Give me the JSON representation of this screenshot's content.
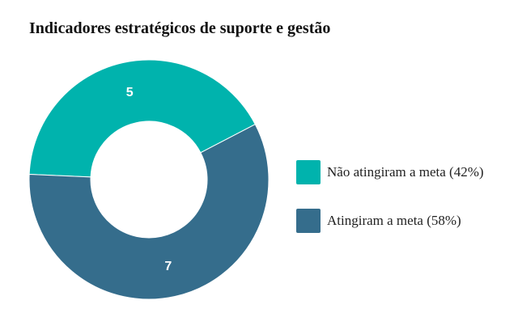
{
  "chart_data": {
    "type": "pie",
    "title": "Indicadores estratégicos de suporte e gestão",
    "donut": true,
    "legend_position": "right",
    "slices": [
      {
        "name": "Não atingiram a meta (42%)",
        "value": 5,
        "label": "5",
        "color": "#00b3ad"
      },
      {
        "name": "Atingiram a meta (58%)",
        "value": 7,
        "label": "7",
        "color": "#356d8c"
      }
    ]
  }
}
